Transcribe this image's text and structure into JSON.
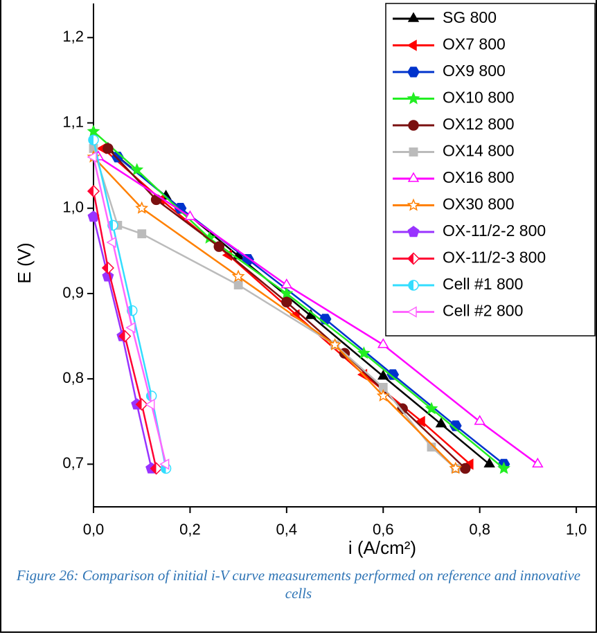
{
  "chart_data": {
    "type": "line",
    "x_label": "i (A/cm²)",
    "y_label": "E (V)",
    "xlim": [
      0,
      1.04
    ],
    "ylim": [
      0.65,
      1.24
    ],
    "xticks": [
      {
        "value": 0,
        "label": "0,0"
      },
      {
        "value": 0.2,
        "label": "0,2"
      },
      {
        "value": 0.4,
        "label": "0,4"
      },
      {
        "value": 0.6,
        "label": "0,6"
      },
      {
        "value": 0.8,
        "label": "0,8"
      },
      {
        "value": 1.0,
        "label": "1,0"
      }
    ],
    "yticks": [
      {
        "value": 0.7,
        "label": "0,7"
      },
      {
        "value": 0.8,
        "label": "0,8"
      },
      {
        "value": 0.9,
        "label": "0,9"
      },
      {
        "value": 1.0,
        "label": "1,0"
      },
      {
        "value": 1.1,
        "label": "1,1"
      },
      {
        "value": 1.2,
        "label": "1,2"
      }
    ],
    "legend_position": "upper right",
    "series": [
      {
        "name": "SG 800",
        "color": "#000000",
        "marker": "triangle",
        "fill": "solid",
        "x": [
          0.03,
          0.15,
          0.3,
          0.45,
          0.6,
          0.72,
          0.82
        ],
        "values": [
          1.07,
          1.014,
          0.944,
          0.874,
          0.803,
          0.747,
          0.7
        ]
      },
      {
        "name": "OX7 800",
        "color": "#ff0000",
        "marker": "ltriangle",
        "fill": "solid",
        "x": [
          0.02,
          0.14,
          0.28,
          0.42,
          0.56,
          0.68,
          0.78
        ],
        "values": [
          1.07,
          1.01,
          0.945,
          0.875,
          0.805,
          0.75,
          0.7
        ]
      },
      {
        "name": "OX9 800",
        "color": "#0033cc",
        "marker": "hexagon",
        "fill": "solid",
        "x": [
          0.05,
          0.18,
          0.32,
          0.48,
          0.62,
          0.75,
          0.85
        ],
        "values": [
          1.06,
          1.0,
          0.94,
          0.87,
          0.805,
          0.745,
          0.7
        ]
      },
      {
        "name": "OX10 800",
        "color": "#22ee22",
        "marker": "star",
        "fill": "solid",
        "x": [
          0.0,
          0.09,
          0.24,
          0.4,
          0.56,
          0.7,
          0.85
        ],
        "values": [
          1.09,
          1.045,
          0.965,
          0.9,
          0.83,
          0.765,
          0.695
        ]
      },
      {
        "name": "OX12 800",
        "color": "#7a1010",
        "marker": "circle",
        "fill": "solid",
        "x": [
          0.03,
          0.13,
          0.26,
          0.4,
          0.52,
          0.64,
          0.77
        ],
        "values": [
          1.07,
          1.01,
          0.955,
          0.89,
          0.83,
          0.765,
          0.695
        ]
      },
      {
        "name": "OX14 800",
        "color": "#bbbbbb",
        "marker": "square",
        "fill": "solid",
        "x": [
          0.0,
          0.05,
          0.1,
          0.3,
          0.5,
          0.6,
          0.7,
          0.75
        ],
        "values": [
          1.07,
          0.98,
          0.97,
          0.91,
          0.84,
          0.79,
          0.72,
          0.695
        ]
      },
      {
        "name": "OX16 800",
        "color": "#ff00ff",
        "marker": "triangle",
        "fill": "open",
        "x": [
          0.01,
          0.2,
          0.4,
          0.6,
          0.8,
          0.92
        ],
        "values": [
          1.06,
          0.99,
          0.91,
          0.84,
          0.75,
          0.7
        ]
      },
      {
        "name": "OX30 800",
        "color": "#ff8000",
        "marker": "star",
        "fill": "open",
        "x": [
          0.0,
          0.1,
          0.3,
          0.5,
          0.6,
          0.75
        ],
        "values": [
          1.06,
          1.0,
          0.92,
          0.84,
          0.78,
          0.695
        ]
      },
      {
        "name": "OX-11/2-2 800",
        "color": "#9933ff",
        "marker": "pentagon",
        "fill": "solid",
        "x": [
          0.0,
          0.03,
          0.06,
          0.09,
          0.12
        ],
        "values": [
          0.99,
          0.92,
          0.85,
          0.77,
          0.695
        ]
      },
      {
        "name": "OX-11/2-3 800",
        "color": "#ff0033",
        "marker": "diamond",
        "fill": "half",
        "x": [
          0.0,
          0.03,
          0.065,
          0.1,
          0.13
        ],
        "values": [
          1.02,
          0.93,
          0.85,
          0.77,
          0.695
        ]
      },
      {
        "name": "Cell #1 800",
        "color": "#33ddff",
        "marker": "circle",
        "fill": "half",
        "x": [
          0.0,
          0.04,
          0.08,
          0.12,
          0.15
        ],
        "values": [
          1.08,
          0.98,
          0.88,
          0.78,
          0.695
        ]
      },
      {
        "name": "Cell #2 800",
        "color": "#ff66ff",
        "marker": "ltriangle",
        "fill": "open",
        "x": [
          0.0,
          0.04,
          0.08,
          0.12,
          0.15
        ],
        "values": [
          1.06,
          0.96,
          0.86,
          0.77,
          0.7
        ]
      }
    ]
  },
  "caption": "Figure 26: Comparison of initial i-V curve measurements performed on reference and innovative cells"
}
